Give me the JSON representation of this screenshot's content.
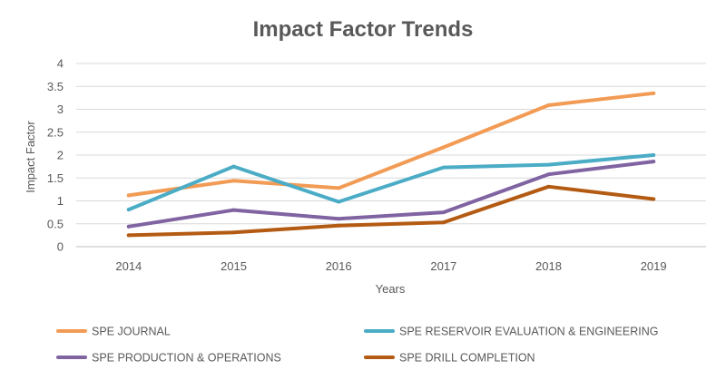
{
  "chart_data": {
    "type": "line",
    "title": "Impact Factor Trends",
    "xlabel": "Years",
    "ylabel": "Impact Factor",
    "categories": [
      "2014",
      "2015",
      "2016",
      "2017",
      "2018",
      "2019"
    ],
    "ylim": [
      0,
      4
    ],
    "yticks": [
      "0",
      "0.5",
      "1",
      "1.5",
      "2",
      "2.5",
      "3",
      "3.5",
      "4"
    ],
    "ytick_values": [
      0,
      0.5,
      1,
      1.5,
      2,
      2.5,
      3,
      3.5,
      4
    ],
    "grid": true,
    "legend_position": "bottom",
    "series": [
      {
        "name": "SPE JOURNAL",
        "color": "#f29b55",
        "values": [
          1.12,
          1.44,
          1.28,
          2.17,
          3.09,
          3.35
        ]
      },
      {
        "name": "SPE RESERVOIR EVALUATION & ENGINEERING",
        "color": "#4bacc6",
        "values": [
          0.81,
          1.75,
          0.98,
          1.73,
          1.79,
          2.0
        ]
      },
      {
        "name": "SPE PRODUCTION & OPERATIONS",
        "color": "#8064a2",
        "values": [
          0.44,
          0.8,
          0.61,
          0.75,
          1.58,
          1.86
        ]
      },
      {
        "name": "SPE DRILL COMPLETION",
        "color": "#b45b13",
        "values": [
          0.25,
          0.31,
          0.46,
          0.53,
          1.31,
          1.04
        ]
      }
    ]
  }
}
